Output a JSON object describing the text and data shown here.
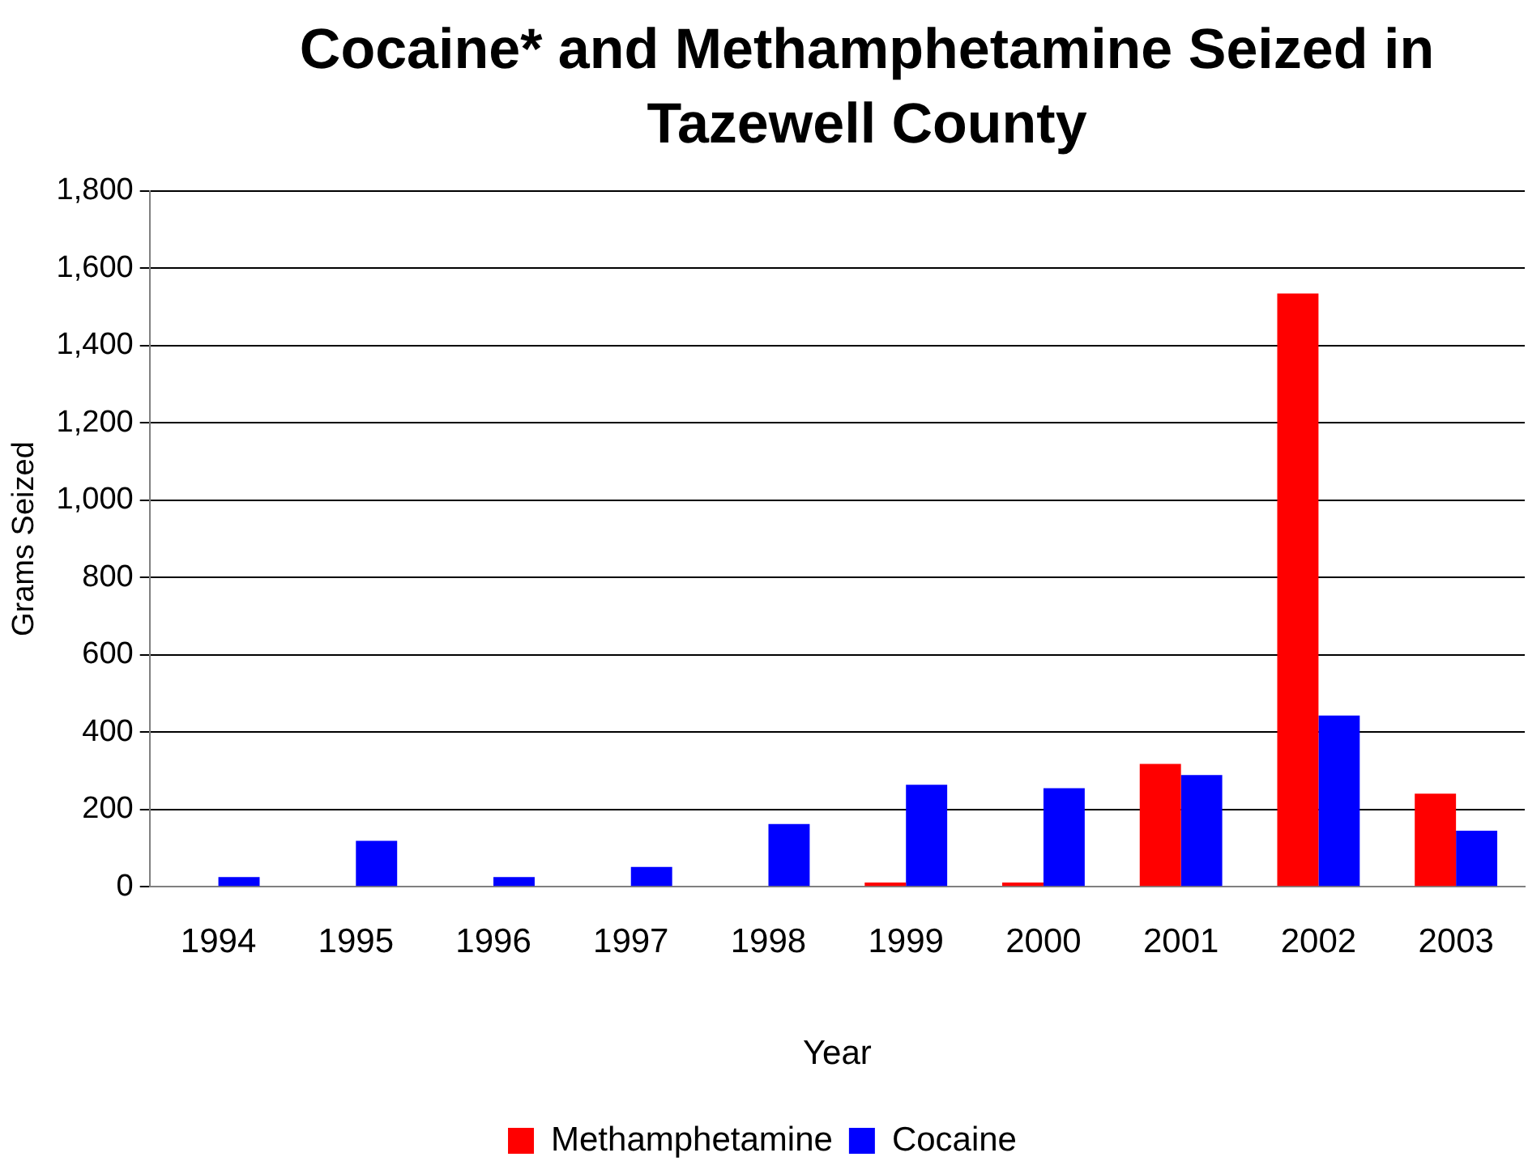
{
  "chart_data": {
    "type": "bar",
    "title": "Cocaine* and Methamphetamine Seized in Tazewell County",
    "xlabel": "Year",
    "ylabel": "Grams Seized",
    "categories": [
      "1994",
      "1995",
      "1996",
      "1997",
      "1998",
      "1999",
      "2000",
      "2001",
      "2002",
      "2003"
    ],
    "series": [
      {
        "name": "Methamphetamine",
        "color": "#ff0000",
        "values": [
          0,
          0,
          0,
          0,
          0,
          11,
          11,
          318,
          1535,
          241
        ]
      },
      {
        "name": "Cocaine",
        "color": "#0000ff",
        "values": [
          25,
          119,
          25,
          51,
          162,
          264,
          255,
          289,
          443,
          145
        ]
      }
    ],
    "ylim": [
      0,
      1800
    ],
    "yticks": [
      {
        "value": 0,
        "label": "0"
      },
      {
        "value": 200,
        "label": "200"
      },
      {
        "value": 400,
        "label": "400"
      },
      {
        "value": 600,
        "label": "600"
      },
      {
        "value": 800,
        "label": "800"
      },
      {
        "value": 1000,
        "label": "1,000"
      },
      {
        "value": 1200,
        "label": "1,200"
      },
      {
        "value": 1400,
        "label": "1,400"
      },
      {
        "value": 1600,
        "label": "1,600"
      },
      {
        "value": 1800,
        "label": "1,800"
      }
    ],
    "grid": "y",
    "legend": "bottom"
  }
}
